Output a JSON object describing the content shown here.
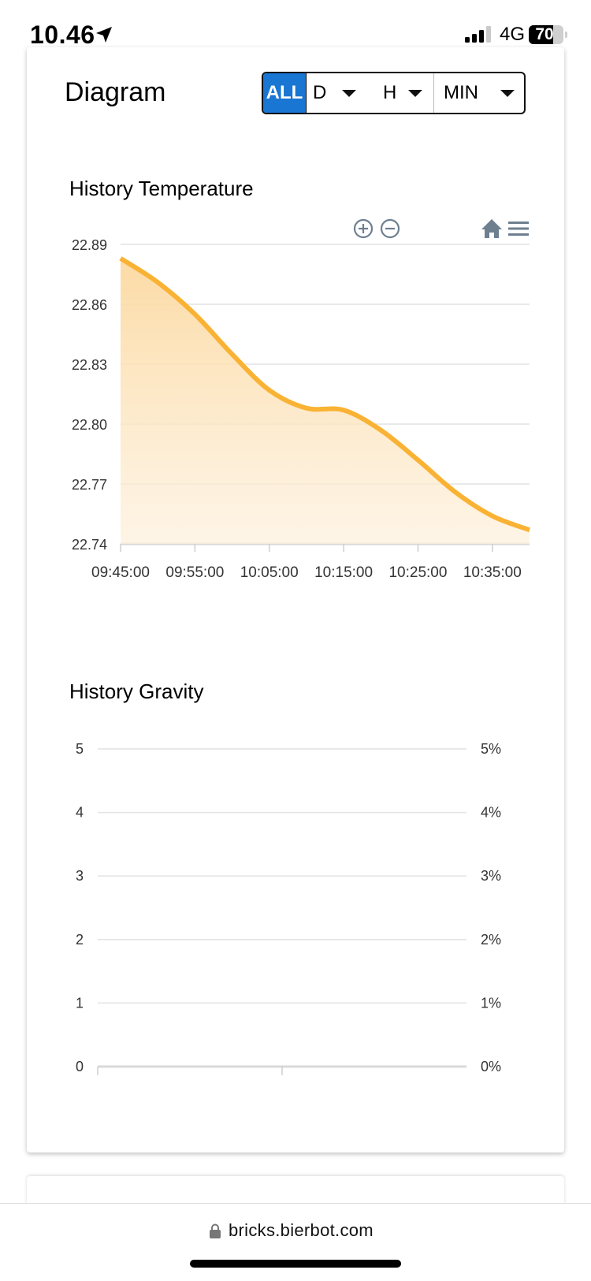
{
  "status_bar": {
    "time": "10.46",
    "network": "4G",
    "battery_level": "70",
    "battery_fraction": 0.7
  },
  "page": {
    "title": "Diagram"
  },
  "range_selector": {
    "all_label": "ALL",
    "day_label": "D",
    "hour_label": "H",
    "minute_label": "MIN"
  },
  "temperature_chart": {
    "title": "History Temperature",
    "toolbar_icons": [
      "zoom-in-icon",
      "zoom-out-icon",
      "home-icon",
      "menu-icon"
    ]
  },
  "gravity_chart": {
    "title": "History Gravity"
  },
  "browser": {
    "url": "bricks.bierbot.com"
  },
  "colors": {
    "accent": "#1976d2",
    "series": "#f9b233",
    "fill": "#fde3b5",
    "grid": "#e2e2e2"
  },
  "chart_data": [
    {
      "type": "area",
      "title": "History Temperature",
      "x": [
        "09:45:00",
        "09:50:00",
        "09:55:00",
        "10:00:00",
        "10:05:00",
        "10:10:00",
        "10:15:00",
        "10:20:00",
        "10:25:00",
        "10:30:00",
        "10:35:00",
        "10:40:00"
      ],
      "x_ticks": [
        "09:45:00",
        "09:55:00",
        "10:05:00",
        "10:15:00",
        "10:25:00",
        "10:35:00"
      ],
      "series": [
        {
          "values": [
            22.883,
            22.871,
            22.855,
            22.835,
            22.817,
            22.808,
            22.807,
            22.797,
            22.782,
            22.766,
            22.754,
            22.747
          ]
        }
      ],
      "y_ticks": [
        "22.89",
        "22.86",
        "22.83",
        "22.80",
        "22.77",
        "22.74"
      ],
      "ylim": [
        22.74,
        22.89
      ],
      "grid": true
    },
    {
      "type": "line",
      "title": "History Gravity",
      "series": [],
      "y_ticks_left": [
        "5",
        "4",
        "3",
        "2",
        "1",
        "0"
      ],
      "y_ticks_right": [
        "5%",
        "4%",
        "3%",
        "2%",
        "1%",
        "0%"
      ],
      "ylim": [
        0,
        5
      ],
      "grid": true
    }
  ]
}
